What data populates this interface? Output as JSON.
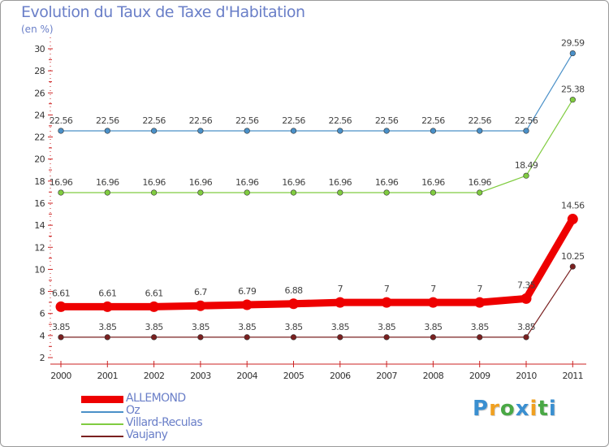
{
  "title": "Evolution du Taux de Taxe d'Habitation",
  "unit": "(en %)",
  "brand": {
    "text": "Proxiti",
    "letter_colors": [
      "#3a8fd0",
      "#f0a020",
      "#4aa845",
      "#3a8fd0",
      "#f0a020",
      "#4aa845",
      "#3a8fd0"
    ]
  },
  "chart_data": {
    "type": "line",
    "title": "Evolution du Taux de Taxe d'Habitation",
    "ylabel": "(en %)",
    "xlabel": "",
    "ylim": [
      2,
      30
    ],
    "yticks": [
      2,
      4,
      6,
      8,
      10,
      12,
      14,
      16,
      18,
      20,
      22,
      24,
      26,
      28,
      30
    ],
    "grid": false,
    "x": [
      "2000",
      "2001",
      "2002",
      "2003",
      "2004",
      "2005",
      "2006",
      "2007",
      "2008",
      "2009",
      "2010",
      "2011"
    ],
    "series": [
      {
        "name": "ALLEMOND",
        "color": "#ee0000",
        "values": [
          6.61,
          6.61,
          6.61,
          6.7,
          6.79,
          6.88,
          7,
          7,
          7,
          7,
          7.35,
          14.56
        ],
        "labels": [
          "6.61",
          "6.61",
          "6.61",
          "6.7",
          "6.79",
          "6.88",
          "7",
          "7",
          "7",
          "7",
          "7.35",
          "14.56"
        ]
      },
      {
        "name": "Oz",
        "color": "#4a90c8",
        "values": [
          22.56,
          22.56,
          22.56,
          22.56,
          22.56,
          22.56,
          22.56,
          22.56,
          22.56,
          22.56,
          22.56,
          29.59
        ],
        "labels": [
          "22.56",
          "22.56",
          "22.56",
          "22.56",
          "22.56",
          "22.56",
          "22.56",
          "22.56",
          "22.56",
          "22.56",
          "22.56",
          "29.59"
        ]
      },
      {
        "name": "Villard-Reculas",
        "color": "#80cc40",
        "values": [
          16.96,
          16.96,
          16.96,
          16.96,
          16.96,
          16.96,
          16.96,
          16.96,
          16.96,
          16.96,
          18.49,
          25.38
        ],
        "labels": [
          "16.96",
          "16.96",
          "16.96",
          "16.96",
          "16.96",
          "16.96",
          "16.96",
          "16.96",
          "16.96",
          "16.96",
          "18.49",
          "25.38"
        ]
      },
      {
        "name": "Vaujany",
        "color": "#7a2020",
        "values": [
          3.85,
          3.85,
          3.85,
          3.85,
          3.85,
          3.85,
          3.85,
          3.85,
          3.85,
          3.85,
          3.85,
          10.25
        ],
        "labels": [
          "3.85",
          "3.85",
          "3.85",
          "3.85",
          "3.85",
          "3.85",
          "3.85",
          "3.85",
          "3.85",
          "3.85",
          "3.85",
          "10.25"
        ]
      }
    ],
    "legend": [
      "ALLEMOND",
      "Oz",
      "Villard-Reculas",
      "Vaujany"
    ]
  }
}
